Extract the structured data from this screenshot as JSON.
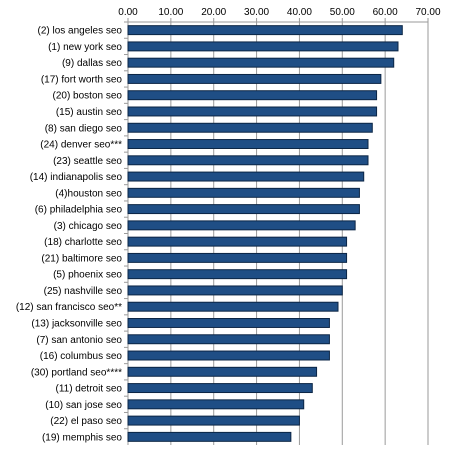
{
  "chart_data": {
    "type": "bar",
    "orientation": "horizontal",
    "title": "",
    "xlabel": "",
    "ylabel": "",
    "xlim": [
      0,
      70
    ],
    "x_ticks": [
      "0.00",
      "10.00",
      "20.00",
      "30.00",
      "40.00",
      "50.00",
      "60.00",
      "70.00"
    ],
    "x_tick_values": [
      0,
      10,
      20,
      30,
      40,
      50,
      60,
      70
    ],
    "x_axis_position": "top",
    "grid": true,
    "legend": "none",
    "bar_color": "#1f4e85",
    "categories": [
      "(2) los angeles seo",
      "(1) new york seo",
      "(9) dallas seo",
      "(17) fort worth seo",
      "(20) boston seo",
      "(15) austin seo",
      "(8) san diego seo",
      "(24) denver seo***",
      "(23) seattle seo",
      "(14) indianapolis seo",
      "(4)houston seo",
      "(6) philadelphia seo",
      "(3) chicago seo",
      "(18) charlotte seo",
      "(21) baltimore seo",
      "(5) phoenix seo",
      "(25) nashville seo",
      "(12) san francisco seo**",
      "(13) jacksonville seo",
      "(7) san antonio seo",
      "(16) columbus seo",
      "(30) portland seo****",
      "(11) detroit seo",
      "(10) san jose seo",
      "(22) el paso seo",
      "(19) memphis seo"
    ],
    "values": [
      64,
      63,
      62,
      59,
      58,
      58,
      57,
      56,
      56,
      55,
      54,
      54,
      53,
      51,
      51,
      51,
      50,
      49,
      47,
      47,
      47,
      44,
      43,
      41,
      40,
      38
    ]
  }
}
